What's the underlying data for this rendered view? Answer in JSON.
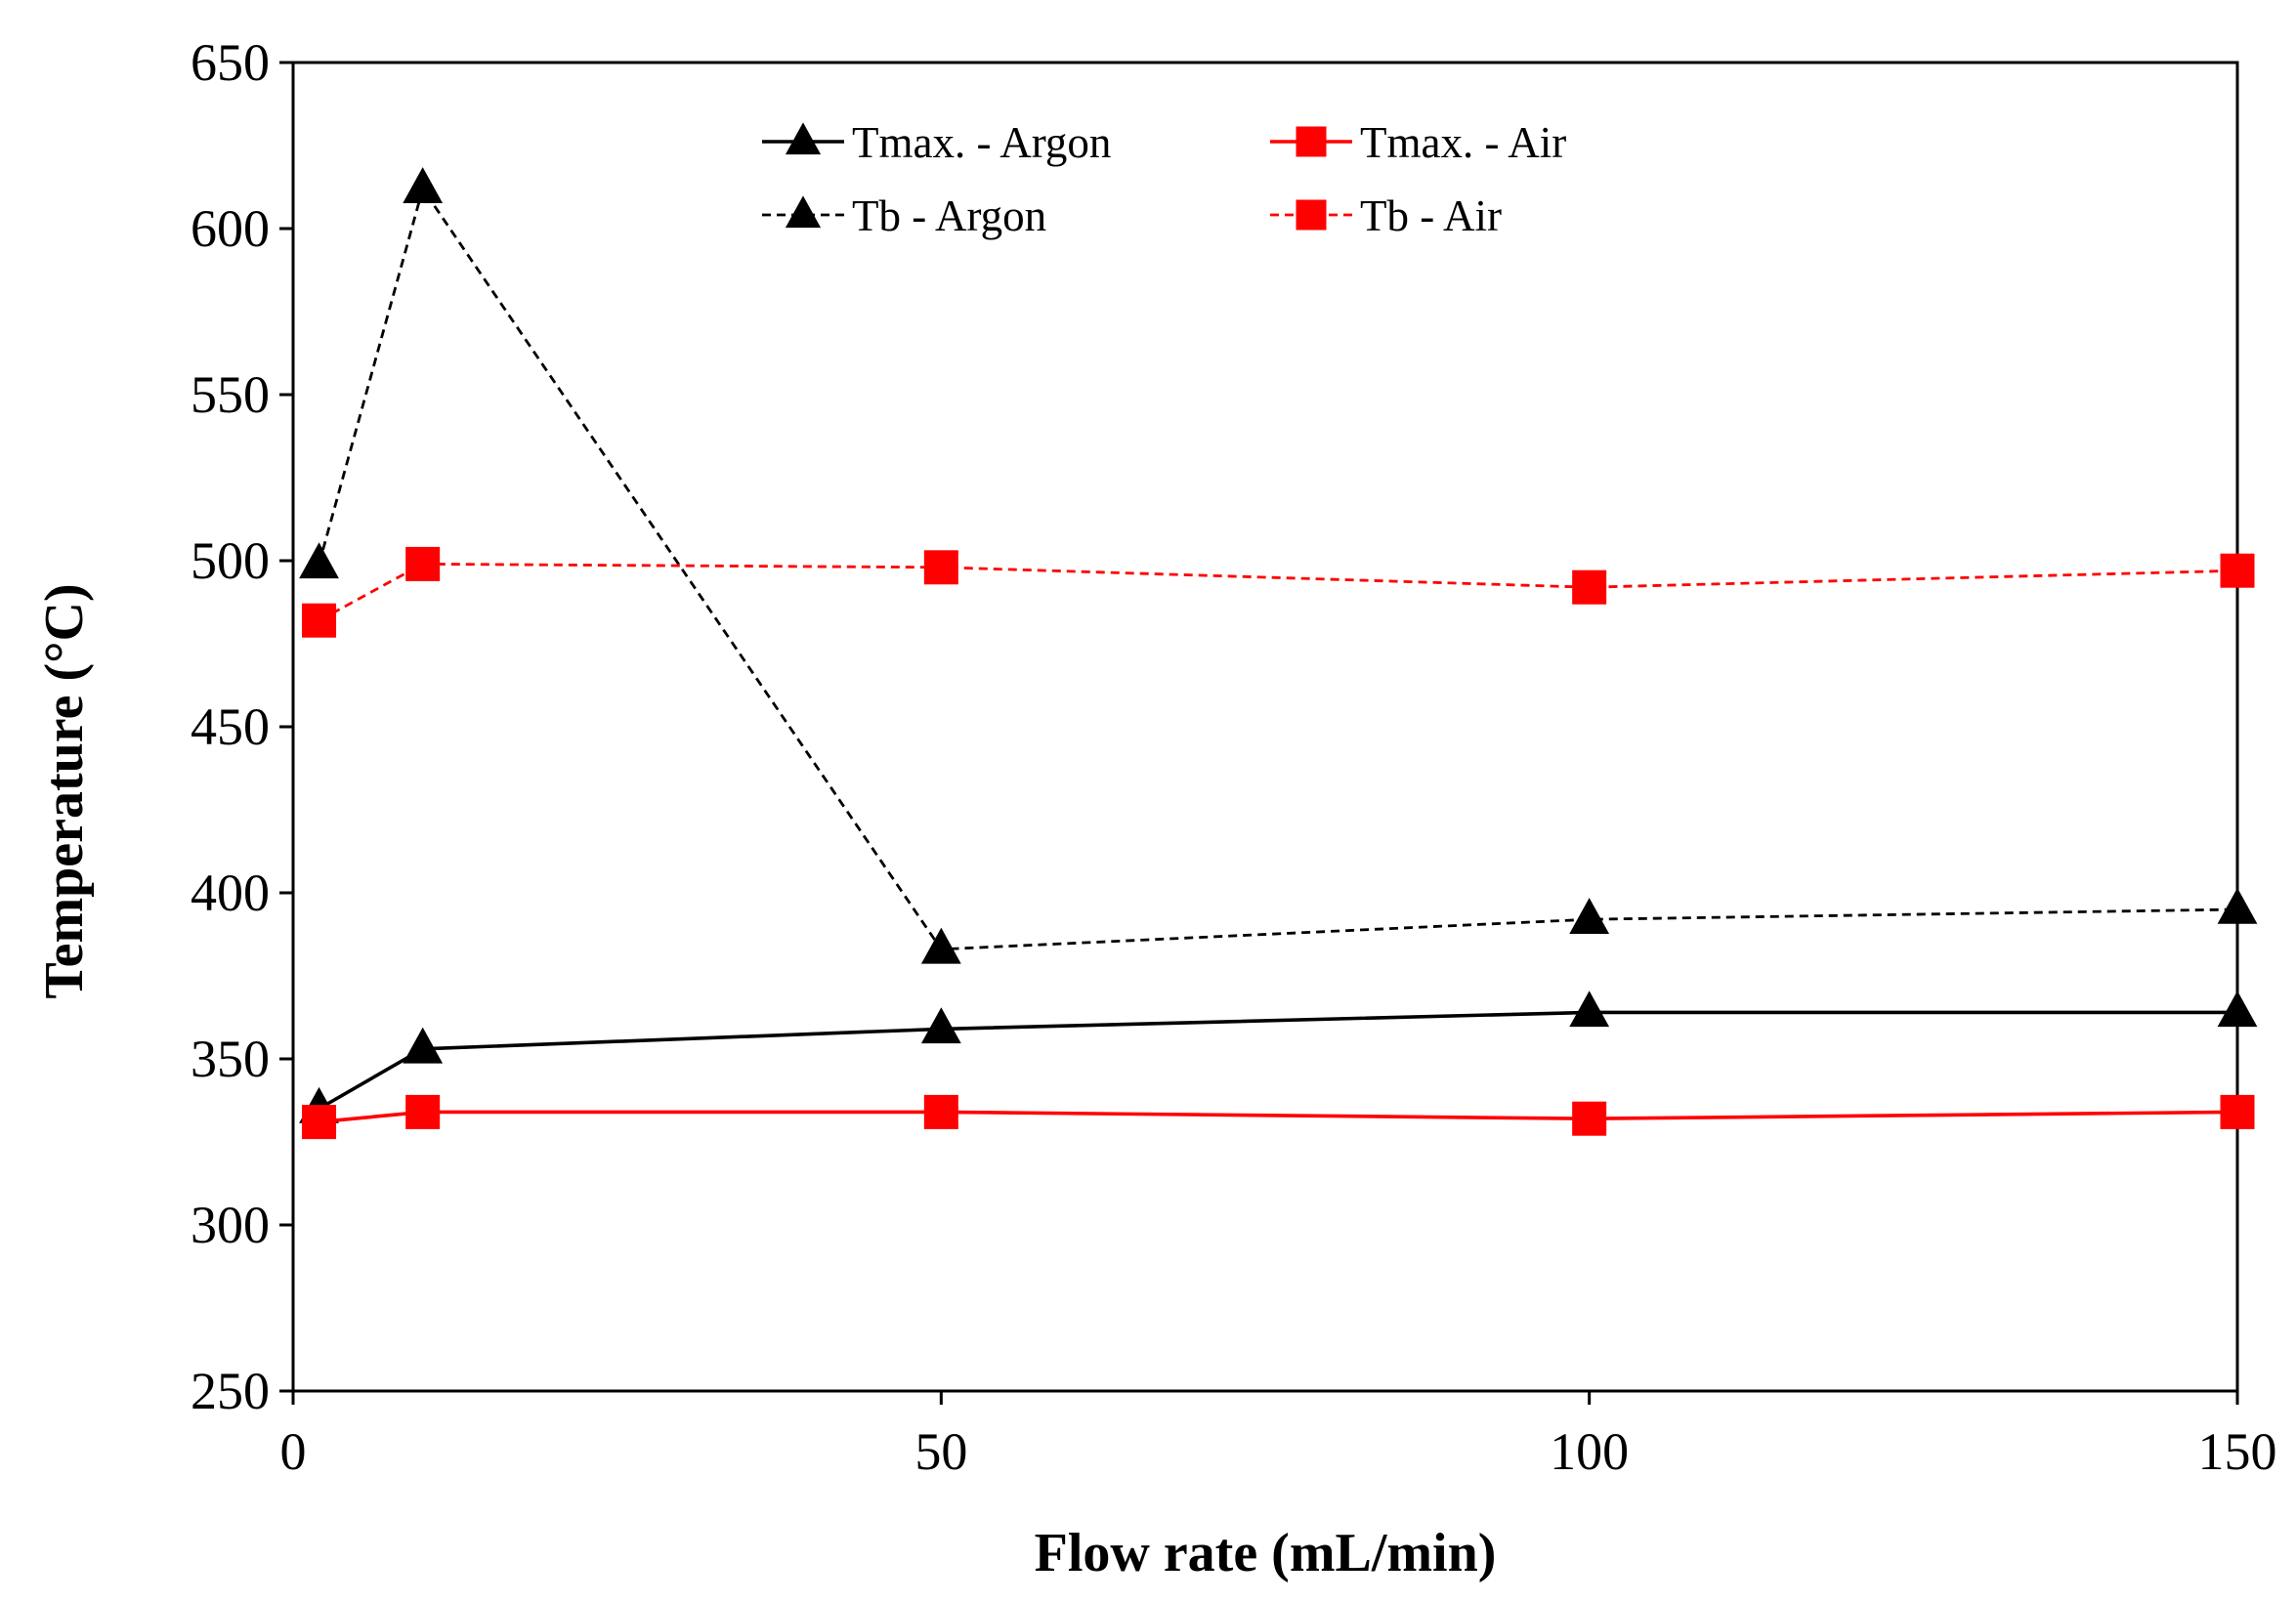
{
  "chart_data": {
    "type": "line",
    "title": "",
    "xlabel": "Flow rate (mL/min)",
    "ylabel": "Temperature (°C)",
    "xlim": [
      0,
      150
    ],
    "ylim": [
      250,
      650
    ],
    "xticks": [
      0,
      50,
      100,
      150
    ],
    "xtick_labels": [
      "0",
      "50",
      "100",
      "150"
    ],
    "yticks": [
      250,
      300,
      350,
      400,
      450,
      500,
      550,
      600,
      650
    ],
    "ytick_labels": [
      "250",
      "300",
      "350",
      "400",
      "450",
      "500",
      "550",
      "600",
      "650"
    ],
    "grid": false,
    "legend_position": "top-center",
    "x": [
      2,
      10,
      50,
      100,
      150
    ],
    "series": [
      {
        "name": "Tmax. - Argon",
        "values": [
          335,
          353,
          359,
          364,
          364
        ],
        "color": "#000000",
        "line_style": "solid",
        "marker": "triangle"
      },
      {
        "name": "Tmax. - Air",
        "values": [
          331,
          334,
          334,
          332,
          334
        ],
        "color": "#ff0000",
        "line_style": "solid",
        "marker": "square"
      },
      {
        "name": "Tb - Argon",
        "values": [
          499,
          612,
          383,
          392,
          395
        ],
        "color": "#000000",
        "line_style": "dashed",
        "marker": "triangle"
      },
      {
        "name": "Tb - Air",
        "values": [
          482,
          499,
          498,
          492,
          497
        ],
        "color": "#ff0000",
        "line_style": "dashed",
        "marker": "square"
      }
    ]
  }
}
